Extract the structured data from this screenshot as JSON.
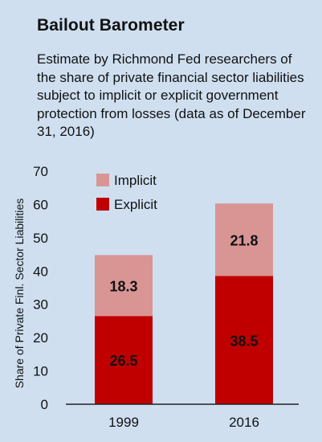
{
  "chart_data": {
    "type": "bar",
    "stacked": true,
    "title": "Bailout Barometer",
    "subtitle": "Estimate by Richmond Fed researchers of the share of private financial sector liabilities subject to implicit or explicit government protection from losses (data as of December 31, 2016)",
    "xlabel": "",
    "ylabel": "Share of Private Finl. Sector Liabilities",
    "ylim": [
      0,
      70
    ],
    "yticks": [
      0,
      10,
      20,
      30,
      40,
      50,
      60,
      70
    ],
    "categories": [
      "1999",
      "2016"
    ],
    "series": [
      {
        "name": "Explicit",
        "values": [
          26.5,
          38.5
        ],
        "color": "#c00000",
        "labels": [
          "26.5",
          "38.5"
        ]
      },
      {
        "name": "Implicit",
        "values": [
          18.3,
          21.8
        ],
        "color": "#d99594",
        "labels": [
          "18.3",
          "21.8"
        ]
      }
    ],
    "legend_placement": "top-left",
    "grid": false,
    "background": "#cfdff0"
  }
}
